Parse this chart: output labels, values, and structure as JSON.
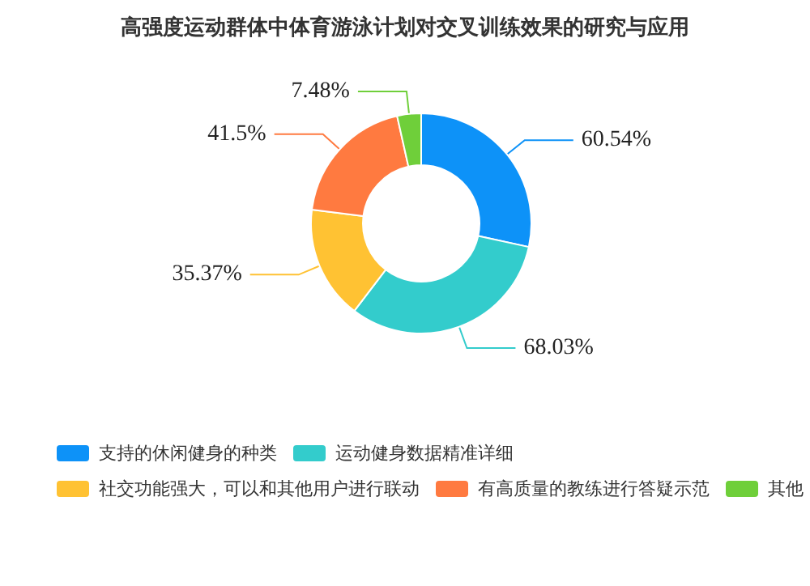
{
  "chart_data": {
    "type": "donut",
    "title": "高强度运动群体中体育游泳计划对交叉训练效果的研究与应用",
    "categories": [
      "支持的休闲健身的种类",
      "运动健身数据精准详细",
      "社交功能强大，可以和其他用户进行联动",
      "有高质量的教练进行答疑示范",
      "其他"
    ],
    "values": [
      60.54,
      68.03,
      35.37,
      41.5,
      7.48
    ],
    "value_labels": [
      "60.54%",
      "68.03%",
      "35.37%",
      "41.5%",
      "7.48%"
    ],
    "colors": [
      "#0d92f8",
      "#33cccc",
      "#ffc233",
      "#ff7a40",
      "#6fcf3a"
    ],
    "legend": "bottom"
  }
}
